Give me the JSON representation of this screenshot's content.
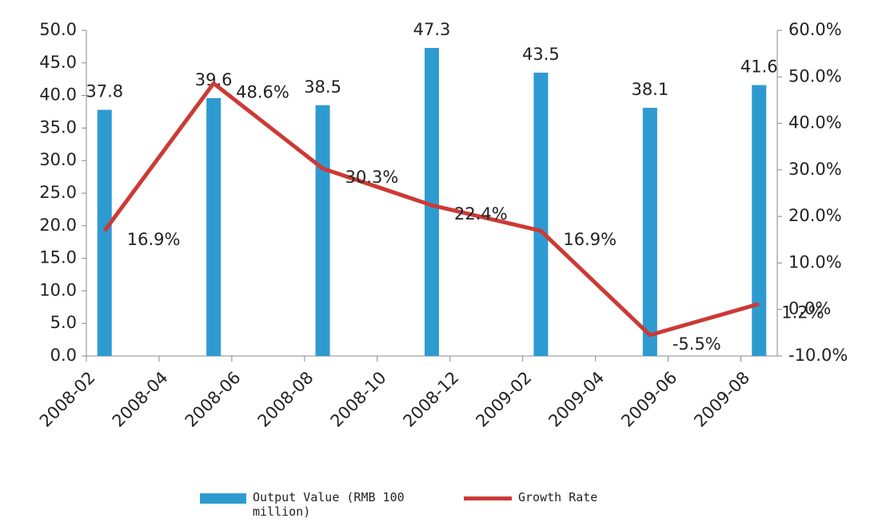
{
  "chart_data": {
    "type": "bar",
    "x": [
      "2008-02",
      "2008-05",
      "2008-08",
      "2008-11",
      "2009-02",
      "2009-05",
      "2009-08"
    ],
    "xlim": [
      "2008-02",
      "2009-09"
    ],
    "xticks": [
      "2008-02",
      "2008-04",
      "2008-06",
      "2008-08",
      "2008-10",
      "2008-12",
      "2009-02",
      "2009-04",
      "2009-06",
      "2009-08"
    ],
    "series": [
      {
        "name": "Output Value (RMB 100 million)",
        "type": "bar",
        "color": "#2e9bd0",
        "axis": "y",
        "values": [
          37.8,
          39.6,
          38.5,
          47.3,
          43.5,
          38.1,
          41.6
        ]
      },
      {
        "name": "Growth Rate",
        "type": "line",
        "color": "#cc3a35",
        "axis": "y2",
        "values": [
          16.9,
          48.6,
          30.3,
          22.4,
          16.9,
          -5.5,
          1.2
        ],
        "value_labels": [
          "16.9%",
          "48.6%",
          "30.3%",
          "22.4%",
          "16.9%",
          "-5.5%",
          "1.2%"
        ]
      }
    ],
    "ylim": [
      0,
      50
    ],
    "yticks": [
      {
        "value": 0,
        "label": "0.0"
      },
      {
        "value": 5,
        "label": "5.0"
      },
      {
        "value": 10,
        "label": "10.0"
      },
      {
        "value": 15,
        "label": "15.0"
      },
      {
        "value": 20,
        "label": "20.0"
      },
      {
        "value": 25,
        "label": "25.0"
      },
      {
        "value": 30,
        "label": "30.0"
      },
      {
        "value": 35,
        "label": "35.0"
      },
      {
        "value": 40,
        "label": "40.0"
      },
      {
        "value": 45,
        "label": "45.0"
      },
      {
        "value": 50,
        "label": "50.0"
      }
    ],
    "y2lim": [
      -10,
      60
    ],
    "y2ticks": [
      {
        "value": -10,
        "label": "-10.0%"
      },
      {
        "value": 0,
        "label": "0.0%"
      },
      {
        "value": 10,
        "label": "10.0%"
      },
      {
        "value": 20,
        "label": "20.0%"
      },
      {
        "value": 30,
        "label": "30.0%"
      },
      {
        "value": 40,
        "label": "40.0%"
      },
      {
        "value": 50,
        "label": "50.0%"
      },
      {
        "value": 60,
        "label": "60.0%"
      }
    ],
    "grid": false
  }
}
